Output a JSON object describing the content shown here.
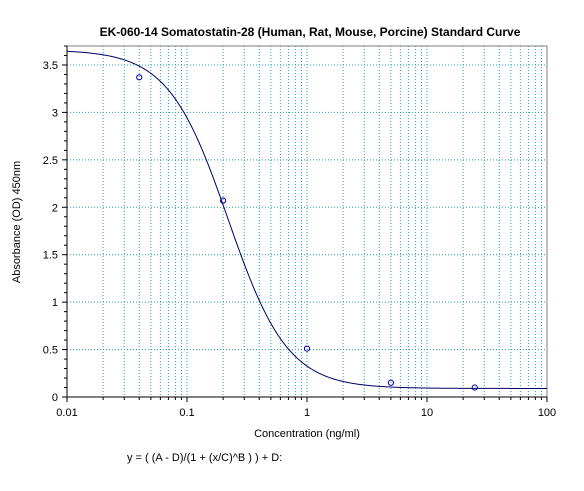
{
  "chart_data": {
    "type": "scatter",
    "title": "EK-060-14 Somatostatin-28 (Human, Rat, Mouse, Porcine) Standard Curve",
    "xlabel": "Concentration (ng/ml)",
    "ylabel": "Absorbance (OD) 450nm",
    "x_scale": "log",
    "xlim": [
      0.01,
      100
    ],
    "ylim": [
      0,
      3.7
    ],
    "x_ticks": [
      0.01,
      0.1,
      1,
      10,
      100
    ],
    "x_tick_labels": [
      "0.01",
      "0.1",
      "1",
      "10",
      "100"
    ],
    "y_ticks": [
      0,
      0.5,
      1,
      1.5,
      2,
      2.5,
      3,
      3.5
    ],
    "y_tick_labels": [
      "0",
      "0.5",
      "1",
      "1.5",
      "2",
      "2.5",
      "3",
      "3.5"
    ],
    "grid": true,
    "series": [
      {
        "points": [
          {
            "x": 0.04,
            "y": 3.37
          },
          {
            "x": 0.2,
            "y": 2.07
          },
          {
            "x": 1,
            "y": 0.51
          },
          {
            "x": 5,
            "y": 0.15
          },
          {
            "x": 25,
            "y": 0.1
          }
        ],
        "fit": {
          "model": "4PL",
          "A": 3.66,
          "B": 1.75,
          "C": 0.22,
          "D": 0.09
        }
      }
    ],
    "equation": "y = ( (A - D)/(1 + (x/C)^B ) ) + D:",
    "colors": {
      "curve": "#000066",
      "points": "#000099",
      "grid": "#2a9fb8"
    }
  }
}
